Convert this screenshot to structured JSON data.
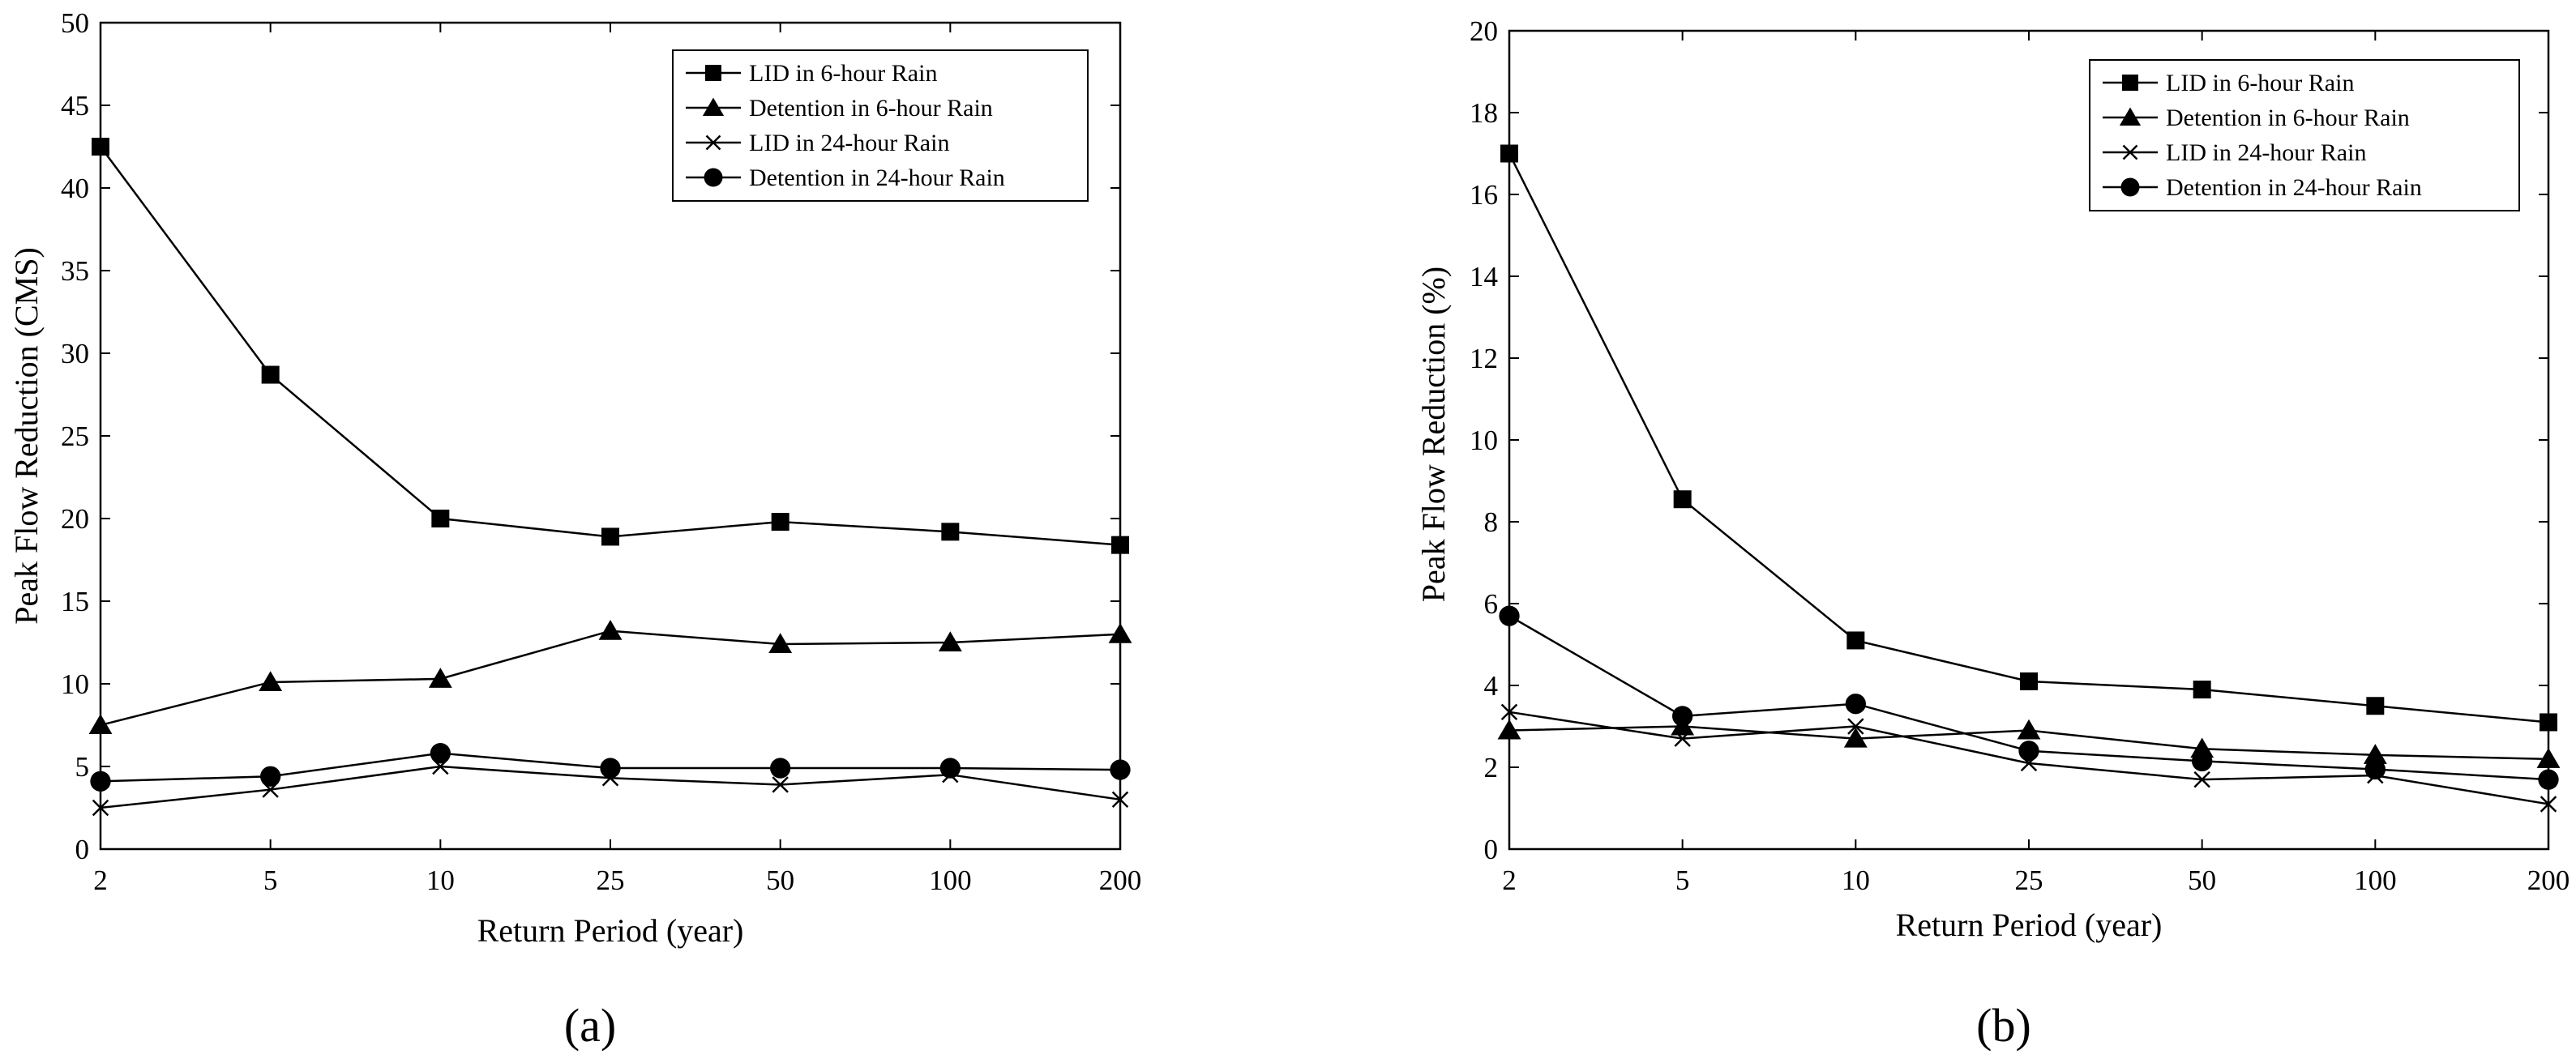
{
  "figure": {
    "panel_labels": [
      "(a)",
      "(b)"
    ]
  },
  "chart_data": [
    {
      "type": "line",
      "panel": "(a)",
      "categories": [
        "2",
        "5",
        "10",
        "25",
        "50",
        "100",
        "200"
      ],
      "xlabel": "Return Period (year)",
      "ylabel": "Peak Flow Reduction (CMS)",
      "ylim": [
        0,
        50
      ],
      "yticks": [
        "0",
        "5",
        "10",
        "15",
        "20",
        "25",
        "30",
        "35",
        "40",
        "45",
        "50"
      ],
      "grid": false,
      "legend_position": "top-right",
      "series": [
        {
          "name": "LID in 6-hour Rain",
          "marker": "square",
          "values": [
            42.5,
            28.7,
            20.0,
            18.9,
            19.8,
            19.2,
            18.4
          ]
        },
        {
          "name": "Detention in 6-hour Rain",
          "marker": "triangle",
          "values": [
            7.5,
            10.1,
            10.3,
            13.2,
            12.4,
            12.5,
            13.0
          ]
        },
        {
          "name": "LID in 24-hour Rain",
          "marker": "x",
          "values": [
            2.5,
            3.6,
            5.0,
            4.3,
            3.9,
            4.5,
            3.0
          ]
        },
        {
          "name": "Detention in 24-hour Rain",
          "marker": "circle",
          "values": [
            4.1,
            4.4,
            5.8,
            4.9,
            4.9,
            4.9,
            4.8
          ]
        }
      ]
    },
    {
      "type": "line",
      "panel": "(b)",
      "categories": [
        "2",
        "5",
        "10",
        "25",
        "50",
        "100",
        "200"
      ],
      "xlabel": "Return Period (year)",
      "ylabel": "Peak Flow Reduction (%)",
      "ylim": [
        0,
        20
      ],
      "yticks": [
        "0",
        "2",
        "4",
        "6",
        "8",
        "10",
        "12",
        "14",
        "16",
        "18",
        "20"
      ],
      "grid": false,
      "legend_position": "top-right",
      "series": [
        {
          "name": "LID in 6-hour Rain",
          "marker": "square",
          "values": [
            17.0,
            8.55,
            5.1,
            4.1,
            3.9,
            3.5,
            3.1
          ]
        },
        {
          "name": "Detention in 6-hour Rain",
          "marker": "triangle",
          "values": [
            2.9,
            3.0,
            2.7,
            2.9,
            2.45,
            2.3,
            2.2
          ]
        },
        {
          "name": "LID in 24-hour Rain",
          "marker": "x",
          "values": [
            3.35,
            2.7,
            3.0,
            2.1,
            1.7,
            1.8,
            1.1
          ]
        },
        {
          "name": "Detention in 24-hour Rain",
          "marker": "circle",
          "values": [
            5.7,
            3.25,
            3.55,
            2.4,
            2.15,
            1.95,
            1.7
          ]
        }
      ]
    }
  ]
}
